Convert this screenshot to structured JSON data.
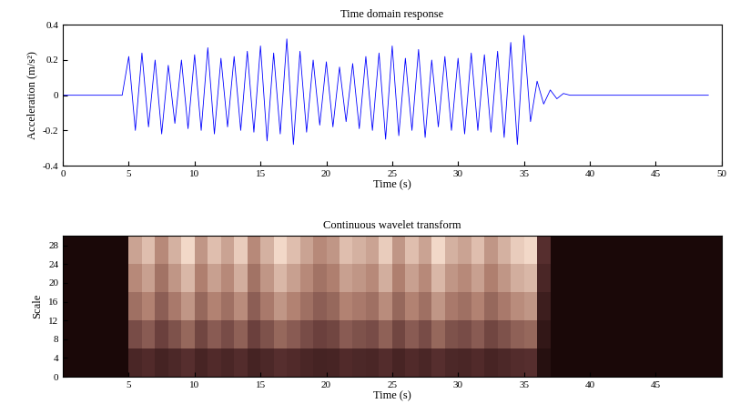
{
  "chart_data": [
    {
      "type": "line",
      "title": "Time domain response",
      "x_label": "Time (s)",
      "y_label": "Acceleration (m/s²)",
      "color": "#0000ff",
      "x": [
        0,
        0.5,
        1,
        1.5,
        2,
        2.5,
        3,
        3.5,
        4,
        4.5,
        5,
        5.5,
        6,
        6.5,
        7,
        7.5,
        8,
        8.5,
        9,
        9.5,
        10,
        10.5,
        11,
        11.5,
        12,
        12.5,
        13,
        13.5,
        14,
        14.5,
        15,
        15.5,
        16,
        16.5,
        17,
        17.5,
        18,
        18.5,
        19,
        19.5,
        20,
        20.5,
        21,
        21.5,
        22,
        22.5,
        23,
        23.5,
        24,
        24.5,
        25,
        25.5,
        26,
        26.5,
        27,
        27.5,
        28,
        28.5,
        29,
        29.5,
        30,
        30.5,
        31,
        31.5,
        32,
        32.5,
        33,
        33.5,
        34,
        34.5,
        35,
        35.5,
        36,
        36.5,
        37,
        37.5,
        38,
        38.5,
        39,
        39.5,
        40,
        40.5,
        41,
        41.5,
        42,
        42.5,
        43,
        43.5,
        44,
        44.5,
        45,
        45.5,
        46,
        46.5,
        47,
        47.5,
        48,
        48.5,
        49
      ],
      "values": [
        0,
        0,
        0,
        0,
        0,
        0,
        0,
        0,
        0,
        0,
        0.22,
        -0.2,
        0.24,
        -0.18,
        0.2,
        -0.22,
        0.17,
        -0.16,
        0.2,
        -0.19,
        0.23,
        -0.2,
        0.27,
        -0.22,
        0.21,
        -0.18,
        0.22,
        -0.2,
        0.25,
        -0.21,
        0.28,
        -0.26,
        0.24,
        -0.22,
        0.32,
        -0.28,
        0.25,
        -0.21,
        0.2,
        -0.17,
        0.19,
        -0.18,
        0.16,
        -0.15,
        0.18,
        -0.19,
        0.22,
        -0.2,
        0.24,
        -0.25,
        0.28,
        -0.23,
        0.21,
        -0.2,
        0.26,
        -0.24,
        0.2,
        -0.18,
        0.22,
        -0.2,
        0.21,
        -0.22,
        0.24,
        -0.2,
        0.23,
        -0.21,
        0.25,
        -0.24,
        0.3,
        -0.28,
        0.34,
        -0.15,
        0.08,
        -0.05,
        0.03,
        -0.02,
        0.01,
        0,
        0,
        0,
        0,
        0,
        0,
        0,
        0,
        0,
        0,
        0,
        0,
        0,
        0,
        0,
        0,
        0,
        0,
        0,
        0,
        0,
        0
      ],
      "xlim": [
        0,
        50
      ],
      "ylim": [
        -0.4,
        0.4
      ],
      "xticks": [
        0,
        5,
        10,
        15,
        20,
        25,
        30,
        35,
        40,
        45,
        50
      ],
      "yticks": [
        -0.4,
        -0.2,
        0,
        0.2,
        0.4
      ]
    },
    {
      "type": "heatmap",
      "title": "Continuous wavelet transform",
      "x_label": "Time (s)",
      "y_label": "Scale",
      "x_edges": [
        0,
        1,
        2,
        3,
        4,
        5,
        6,
        7,
        8,
        9,
        10,
        11,
        12,
        13,
        14,
        15,
        16,
        17,
        18,
        19,
        20,
        21,
        22,
        23,
        24,
        25,
        26,
        27,
        28,
        29,
        30,
        31,
        32,
        33,
        34,
        35,
        36,
        37,
        38,
        39,
        40,
        41,
        42,
        43,
        44,
        45,
        46,
        47,
        48,
        49,
        50
      ],
      "y_edges": [
        0,
        6,
        12,
        18,
        24,
        30
      ],
      "cells": [
        [
          0,
          0,
          0,
          0,
          0,
          0.2,
          0.23,
          0.18,
          0.21,
          0.25,
          0.19,
          0.23,
          0.2,
          0.24,
          0.18,
          0.21,
          0.25,
          0.23,
          0.2,
          0.18,
          0.19,
          0.23,
          0.21,
          0.2,
          0.24,
          0.19,
          0.23,
          0.2,
          0.25,
          0.21,
          0.2,
          0.23,
          0.19,
          0.21,
          0.24,
          0.25,
          0.05,
          0,
          0,
          0,
          0,
          0,
          0,
          0,
          0,
          0,
          0,
          0,
          0,
          0
        ],
        [
          0,
          0,
          0,
          0,
          0,
          0.36,
          0.41,
          0.32,
          0.38,
          0.45,
          0.34,
          0.41,
          0.36,
          0.43,
          0.32,
          0.38,
          0.45,
          0.41,
          0.36,
          0.32,
          0.34,
          0.41,
          0.38,
          0.36,
          0.43,
          0.34,
          0.41,
          0.36,
          0.45,
          0.38,
          0.36,
          0.41,
          0.34,
          0.38,
          0.43,
          0.45,
          0.1,
          0,
          0,
          0,
          0,
          0,
          0,
          0,
          0,
          0,
          0,
          0,
          0,
          0
        ],
        [
          0,
          0,
          0,
          0,
          0,
          0.48,
          0.54,
          0.42,
          0.51,
          0.6,
          0.45,
          0.54,
          0.48,
          0.57,
          0.42,
          0.51,
          0.6,
          0.54,
          0.48,
          0.42,
          0.45,
          0.54,
          0.51,
          0.48,
          0.57,
          0.45,
          0.54,
          0.48,
          0.6,
          0.51,
          0.48,
          0.54,
          0.45,
          0.51,
          0.57,
          0.6,
          0.15,
          0,
          0,
          0,
          0,
          0,
          0,
          0,
          0,
          0,
          0,
          0,
          0,
          0
        ],
        [
          0,
          0,
          0,
          0,
          0,
          0.56,
          0.63,
          0.49,
          0.6,
          0.7,
          0.53,
          0.63,
          0.56,
          0.67,
          0.49,
          0.6,
          0.7,
          0.63,
          0.56,
          0.49,
          0.53,
          0.63,
          0.6,
          0.56,
          0.67,
          0.53,
          0.63,
          0.56,
          0.7,
          0.6,
          0.56,
          0.63,
          0.53,
          0.6,
          0.67,
          0.7,
          0.2,
          0,
          0,
          0,
          0,
          0,
          0,
          0,
          0,
          0,
          0,
          0,
          0,
          0
        ],
        [
          0,
          0,
          0,
          0,
          0,
          0.64,
          0.72,
          0.56,
          0.68,
          0.8,
          0.6,
          0.72,
          0.64,
          0.76,
          0.56,
          0.68,
          0.8,
          0.72,
          0.64,
          0.56,
          0.6,
          0.72,
          0.68,
          0.64,
          0.76,
          0.6,
          0.72,
          0.64,
          0.8,
          0.68,
          0.64,
          0.72,
          0.6,
          0.68,
          0.76,
          0.8,
          0.25,
          0,
          0,
          0,
          0,
          0,
          0,
          0,
          0,
          0,
          0,
          0,
          0,
          0
        ]
      ],
      "xlim": [
        0,
        50
      ],
      "ylim": [
        0,
        30
      ],
      "xticks": [
        5,
        10,
        15,
        20,
        25,
        30,
        35,
        40,
        45
      ],
      "yticks": [
        0,
        4,
        8,
        12,
        16,
        20,
        24,
        28
      ]
    }
  ]
}
